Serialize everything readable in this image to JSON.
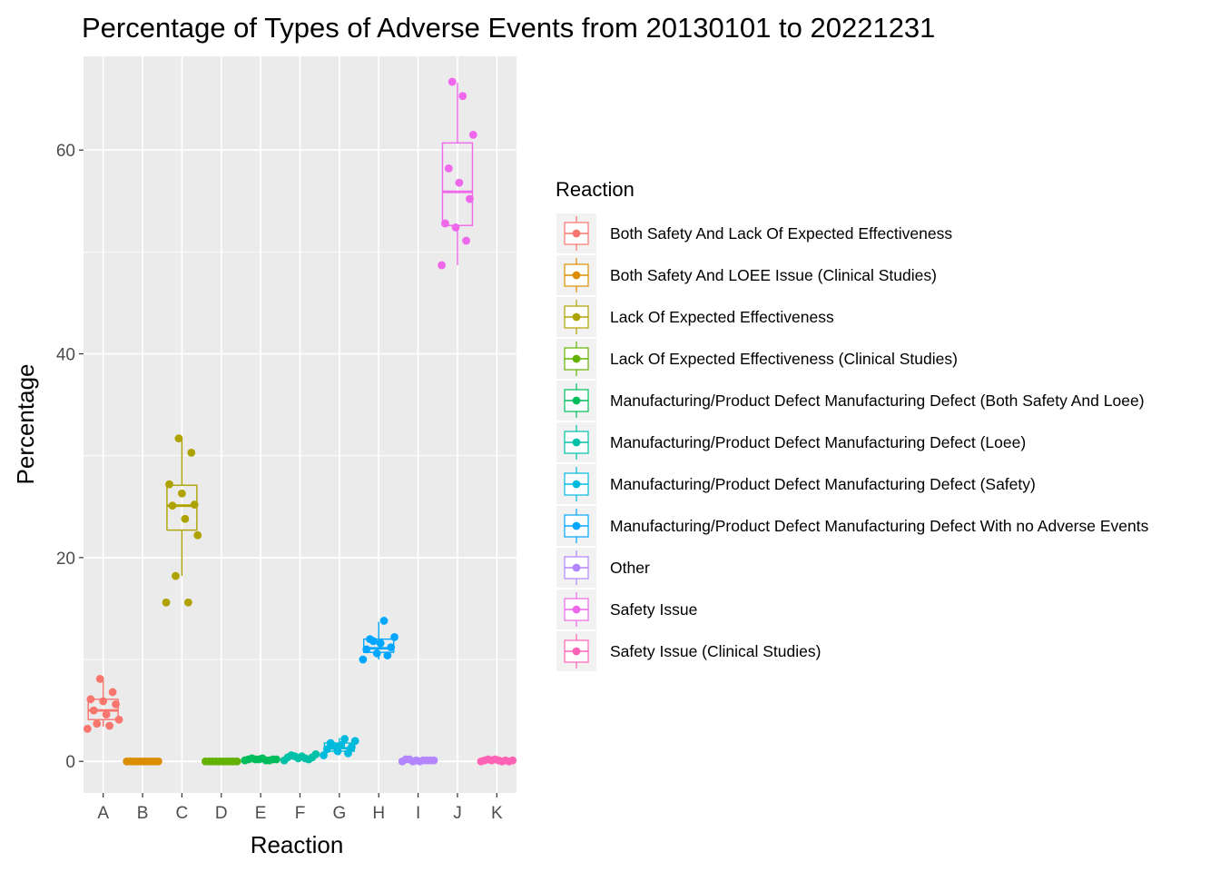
{
  "chart_data": {
    "type": "box",
    "title": "Percentage of Types of Adverse Events from 20130101 to 20221231",
    "xlabel": "Reaction",
    "ylabel": "Percentage",
    "ylim": [
      -3.1,
      69.2
    ],
    "yticks": [
      0,
      20,
      40,
      60
    ],
    "grid": true,
    "legend_position": "right",
    "legend_title": "Reaction",
    "categories": [
      "A",
      "B",
      "C",
      "D",
      "E",
      "F",
      "G",
      "H",
      "I",
      "J",
      "K"
    ],
    "series": [
      {
        "category": "A",
        "name": "Both Safety And Lack Of Expected Effectiveness",
        "color": "#F8766D",
        "box": {
          "min": 3.4,
          "q1": 4.1,
          "median": 5.0,
          "q3": 6.1,
          "max": 8.0
        },
        "points": [
          3.2,
          3.5,
          3.7,
          4.1,
          4.6,
          5.0,
          5.6,
          5.9,
          6.1,
          6.8,
          8.1
        ]
      },
      {
        "category": "B",
        "name": "Both Safety And LOEE Issue (Clinical Studies)",
        "color": "#DB8E00",
        "box": {
          "min": 0.0,
          "q1": 0.0,
          "median": 0.0,
          "q3": 0.0,
          "max": 0.0
        },
        "points": [
          0.0,
          0.0,
          0.0,
          0.0,
          0.0,
          0.0,
          0.0,
          0.0,
          0.0,
          0.0
        ]
      },
      {
        "category": "C",
        "name": "Lack Of Expected Effectiveness",
        "color": "#AEA200",
        "box": {
          "min": 18.2,
          "q1": 22.7,
          "median": 25.1,
          "q3": 27.1,
          "max": 31.7
        },
        "points": [
          15.6,
          15.6,
          18.2,
          22.2,
          23.8,
          25.1,
          25.2,
          26.3,
          27.2,
          30.3,
          31.7
        ]
      },
      {
        "category": "D",
        "name": "Lack Of Expected Effectiveness (Clinical Studies)",
        "color": "#64B200",
        "box": {
          "min": 0.0,
          "q1": 0.0,
          "median": 0.0,
          "q3": 0.0,
          "max": 0.0
        },
        "points": [
          0.0,
          0.0,
          0.0,
          0.0,
          0.0,
          0.0,
          0.0,
          0.0,
          0.0,
          0.0
        ]
      },
      {
        "category": "E",
        "name": "Manufacturing/Product Defect Manufacturing Defect (Both Safety And Loee)",
        "color": "#00BD5C",
        "box": {
          "min": 0.1,
          "q1": 0.15,
          "median": 0.2,
          "q3": 0.25,
          "max": 0.3
        },
        "points": [
          0.1,
          0.1,
          0.2,
          0.2,
          0.2,
          0.3,
          0.3,
          0.2,
          0.1,
          0.2
        ]
      },
      {
        "category": "F",
        "name": "Manufacturing/Product Defect Manufacturing Defect (Loee)",
        "color": "#00C1A7",
        "box": {
          "min": 0.1,
          "q1": 0.3,
          "median": 0.4,
          "q3": 0.5,
          "max": 0.7
        },
        "points": [
          0.1,
          0.2,
          0.3,
          0.4,
          0.4,
          0.5,
          0.6,
          0.7,
          0.3,
          0.5
        ]
      },
      {
        "category": "G",
        "name": "Manufacturing/Product Defect Manufacturing Defect (Safety)",
        "color": "#00BADE",
        "box": {
          "min": 0.6,
          "q1": 1.0,
          "median": 1.3,
          "q3": 1.8,
          "max": 2.3
        },
        "points": [
          0.6,
          0.8,
          1.0,
          1.2,
          1.4,
          1.6,
          1.8,
          2.0,
          2.2,
          1.5
        ]
      },
      {
        "category": "H",
        "name": "Manufacturing/Product Defect Manufacturing Defect With no Adverse Events",
        "color": "#00A6FF",
        "box": {
          "min": 10.0,
          "q1": 10.7,
          "median": 11.1,
          "q3": 12.0,
          "max": 13.7
        },
        "points": [
          10.0,
          10.4,
          10.6,
          11.0,
          11.2,
          11.6,
          12.0,
          12.2,
          13.8,
          11.8
        ]
      },
      {
        "category": "I",
        "name": "Other",
        "color": "#B385FF",
        "box": {
          "min": 0.0,
          "q1": 0.05,
          "median": 0.1,
          "q3": 0.15,
          "max": 0.2
        },
        "points": [
          0.0,
          0.1,
          0.1,
          0.2,
          0.1,
          0.0,
          0.2,
          0.1,
          0.1,
          0.0
        ]
      },
      {
        "category": "J",
        "name": "Safety Issue",
        "color": "#EF67EB",
        "box": {
          "min": 48.7,
          "q1": 52.6,
          "median": 55.9,
          "q3": 60.7,
          "max": 66.6
        },
        "points": [
          48.7,
          51.1,
          52.4,
          52.8,
          55.2,
          56.8,
          58.2,
          61.5,
          65.3,
          66.7
        ]
      },
      {
        "category": "K",
        "name": "Safety Issue (Clinical Studies)",
        "color": "#FF63B6",
        "box": {
          "min": 0.0,
          "q1": 0.05,
          "median": 0.1,
          "q3": 0.15,
          "max": 0.2
        },
        "points": [
          0.0,
          0.1,
          0.2,
          0.1,
          0.0,
          0.1,
          0.2,
          0.1,
          0.0,
          0.1
        ]
      }
    ]
  }
}
